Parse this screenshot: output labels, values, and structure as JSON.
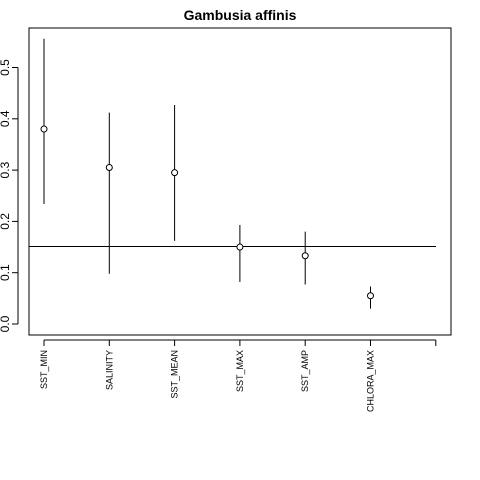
{
  "chart_data": {
    "type": "scatter",
    "title": "Gambusia affinis",
    "xlabel": "",
    "ylabel": "",
    "categories": [
      "SST_MIN",
      "SALINITY",
      "SST_MEAN",
      "SST_MAX",
      "SST_AMP",
      "CHLORA_MAX"
    ],
    "values": [
      0.38,
      0.305,
      0.295,
      0.15,
      0.133,
      0.055
    ],
    "lower": [
      0.234,
      0.098,
      0.162,
      0.082,
      0.077,
      0.03
    ],
    "upper": [
      0.556,
      0.412,
      0.427,
      0.193,
      0.18,
      0.073
    ],
    "reference_line": 0.151,
    "yticks": [
      0.0,
      0.1,
      0.2,
      0.3,
      0.4,
      0.5
    ],
    "ytick_labels": [
      "0.0",
      "0.1",
      "0.2",
      "0.3",
      "0.4",
      "0.5"
    ],
    "ylim": [
      0,
      0.56
    ],
    "grid": false
  }
}
